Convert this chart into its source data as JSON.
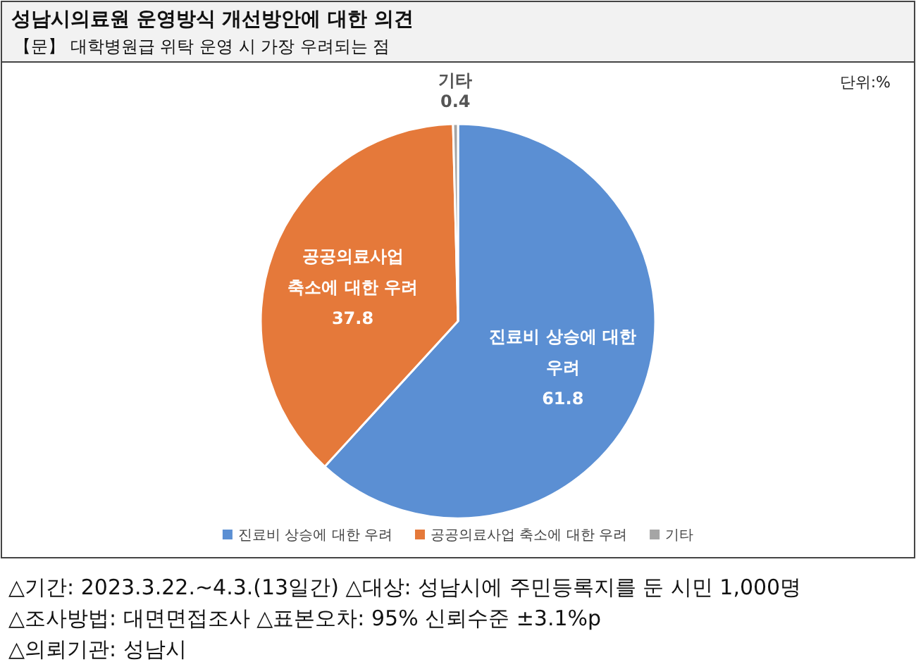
{
  "chart_data": {
    "type": "pie",
    "title": "성남시의료원 운영방식 개선방안에 대한 의견",
    "subtitle": "【문】 대학병원급 위탁 운영 시 가장 우려되는 점",
    "annotations": [
      "단위:%",
      "△기간: 2023.3.22.~4.3.(13일간) △대상: 성남시에 주민등록지를 둔 시민 1,000명",
      "△조사방법: 대면면접조사 △표본오차: 95% 신뢰수준 ±3.1%p",
      "△의뢰기관: 성남시"
    ],
    "categories": [
      "진료비 상승에 대한 우려",
      "공공의료사업 축소에 대한 우려",
      "기타"
    ],
    "values": [
      61.8,
      37.8,
      0.4
    ],
    "colors": [
      "#5b8fd3",
      "#e5793a",
      "#a5a5a5"
    ],
    "data_labels": true,
    "legend": "bottom"
  }
}
